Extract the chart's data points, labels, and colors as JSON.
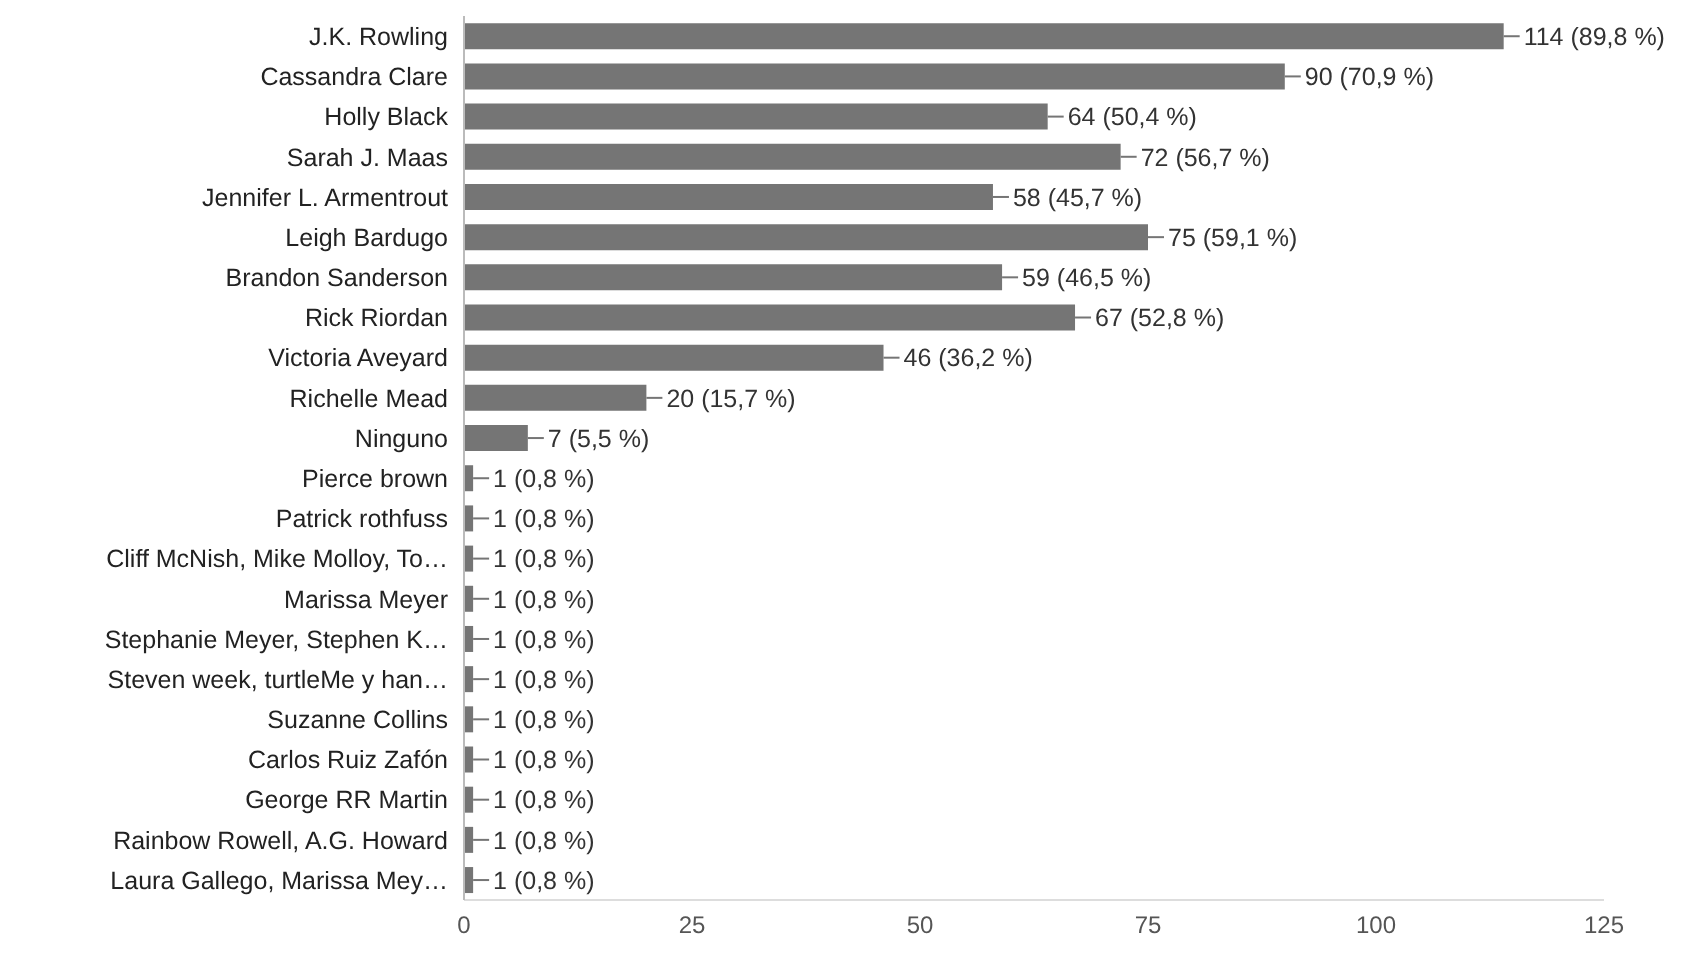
{
  "chart_data": {
    "type": "bar",
    "orientation": "horizontal",
    "categories": [
      "J.K. Rowling",
      "Cassandra Clare",
      "Holly Black",
      "Sarah J. Maas",
      "Jennifer L. Armentrout",
      "Leigh Bardugo",
      "Brandon Sanderson",
      "Rick Riordan",
      "Victoria Aveyard",
      "Richelle Mead",
      "Ninguno",
      "Pierce brown",
      "Patrick rothfuss",
      "Cliff McNish, Mike Molloy, To…",
      "Marissa Meyer",
      "Stephanie Meyer, Stephen K…",
      "Steven week, turtleMe y han…",
      "Suzanne Collins",
      "Carlos Ruiz Zafón",
      "George RR Martin",
      "Rainbow Rowell, A.G. Howard",
      "Laura Gallego, Marissa Mey…"
    ],
    "values": [
      114,
      90,
      64,
      72,
      58,
      75,
      59,
      67,
      46,
      20,
      7,
      1,
      1,
      1,
      1,
      1,
      1,
      1,
      1,
      1,
      1,
      1
    ],
    "value_labels": [
      "114 (89,8 %)",
      "90 (70,9 %)",
      "64 (50,4 %)",
      "72 (56,7 %)",
      "58 (45,7 %)",
      "75 (59,1 %)",
      "59 (46,5 %)",
      "67 (52,8 %)",
      "46 (36,2 %)",
      "20 (15,7 %)",
      "7 (5,5 %)",
      "1 (0,8 %)",
      "1 (0,8 %)",
      "1 (0,8 %)",
      "1 (0,8 %)",
      "1 (0,8 %)",
      "1 (0,8 %)",
      "1 (0,8 %)",
      "1 (0,8 %)",
      "1 (0,8 %)",
      "1 (0,8 %)",
      "1 (0,8 %)"
    ],
    "color": "#757575",
    "xlim": [
      0,
      125
    ],
    "xticks": [
      0,
      25,
      50,
      75,
      100,
      125
    ]
  }
}
